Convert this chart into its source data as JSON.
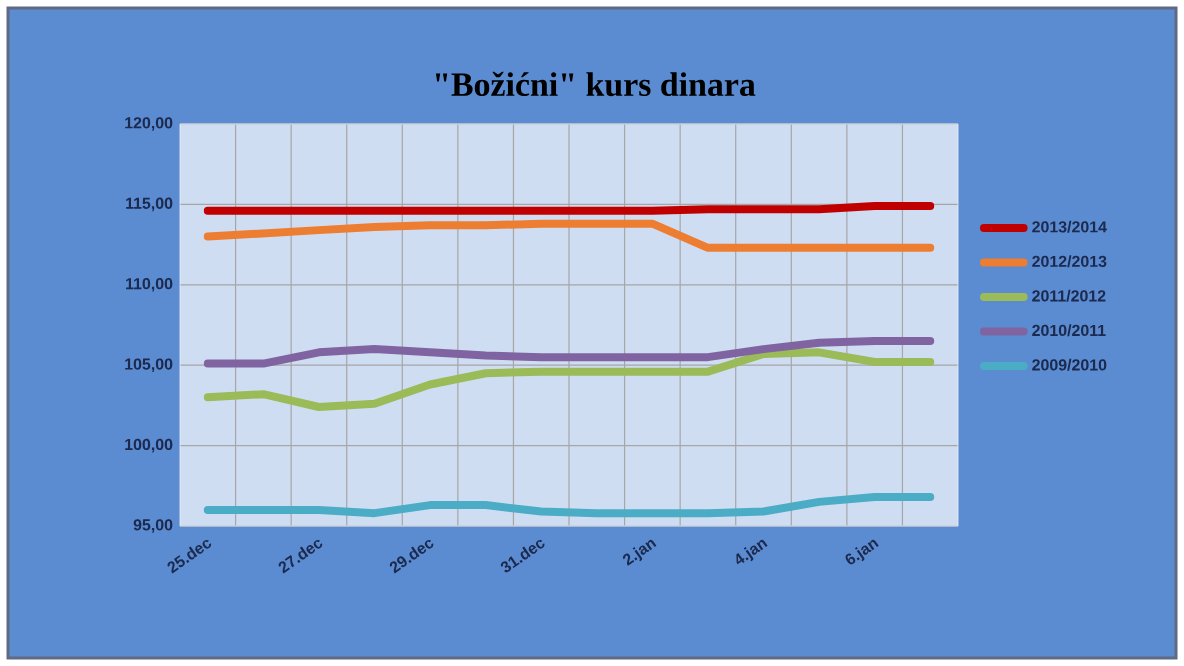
{
  "chart_data": {
    "type": "line",
    "title": "\"Božićni\" kurs dinara",
    "categories": [
      "25.dec",
      null,
      "27.dec",
      null,
      "29.dec",
      null,
      "31.dec",
      null,
      "2.jan",
      null,
      "4.jan",
      null,
      "6.jan",
      null
    ],
    "ylim": [
      95,
      120
    ],
    "yticks": [
      {
        "value": 95,
        "label": "95,00"
      },
      {
        "value": 100,
        "label": "100,00"
      },
      {
        "value": 105,
        "label": "105,00"
      },
      {
        "value": 110,
        "label": "110,00"
      },
      {
        "value": 115,
        "label": "115,00"
      },
      {
        "value": 120,
        "label": "120,00"
      }
    ],
    "grid": true,
    "legend": "right",
    "marker": "none",
    "line_style": "solid",
    "series": [
      {
        "name": "2013/2014",
        "color": "#c00000",
        "values": [
          114.6,
          114.6,
          114.6,
          114.6,
          114.6,
          114.6,
          114.6,
          114.6,
          114.6,
          114.7,
          114.7,
          114.7,
          114.9,
          114.9
        ]
      },
      {
        "name": "2012/2013",
        "color": "#ed7d31",
        "values": [
          113.0,
          113.2,
          113.4,
          113.6,
          113.7,
          113.7,
          113.8,
          113.8,
          113.8,
          112.3,
          112.3,
          112.3,
          112.3,
          112.3
        ]
      },
      {
        "name": "2011/2012",
        "color": "#9bbb59",
        "values": [
          103.0,
          103.2,
          102.4,
          102.6,
          103.8,
          104.5,
          104.6,
          104.6,
          104.6,
          104.6,
          105.7,
          105.8,
          105.2,
          105.2
        ]
      },
      {
        "name": "2010/2011",
        "color": "#8064a2",
        "values": [
          105.1,
          105.1,
          105.8,
          106.0,
          105.8,
          105.6,
          105.5,
          105.5,
          105.5,
          105.5,
          106.0,
          106.4,
          106.5,
          106.5
        ]
      },
      {
        "name": "2009/2010",
        "color": "#4bacc6",
        "values": [
          96.0,
          96.0,
          96.0,
          95.8,
          96.3,
          96.3,
          95.9,
          95.8,
          95.8,
          95.8,
          95.9,
          96.5,
          96.8,
          96.8
        ]
      }
    ]
  }
}
